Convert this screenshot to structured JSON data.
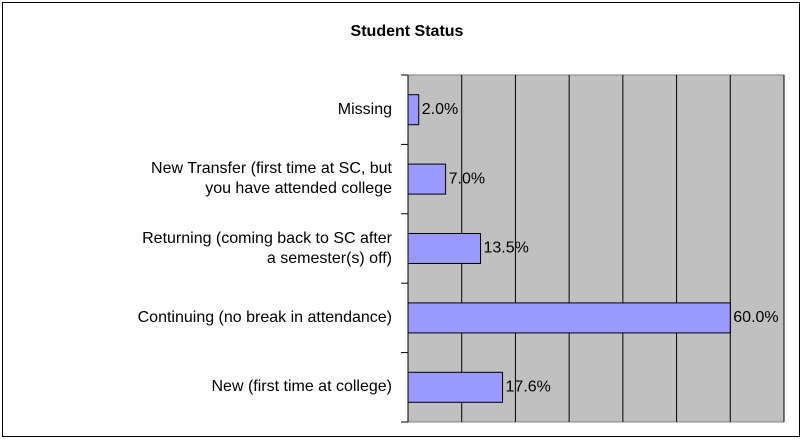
{
  "chart_data": {
    "type": "bar",
    "orientation": "horizontal",
    "title": "Student Status",
    "categories": [
      "Missing",
      "New Transfer (first time at SC, but\nyou have attended college",
      "Returning (coming back to SC after\na semester(s) off)",
      "Continuing (no break in attendance)",
      "New  (first time at college)"
    ],
    "values": [
      2.0,
      7.0,
      13.5,
      60.0,
      17.6
    ],
    "value_labels": [
      "2.0%",
      "7.0%",
      "13.5%",
      "60.0%",
      "17.6%"
    ],
    "color": "#9999ff",
    "xlim": [
      0,
      70
    ],
    "xticks": [
      0,
      10,
      20,
      30,
      40,
      50,
      60,
      70
    ],
    "grid": true
  }
}
